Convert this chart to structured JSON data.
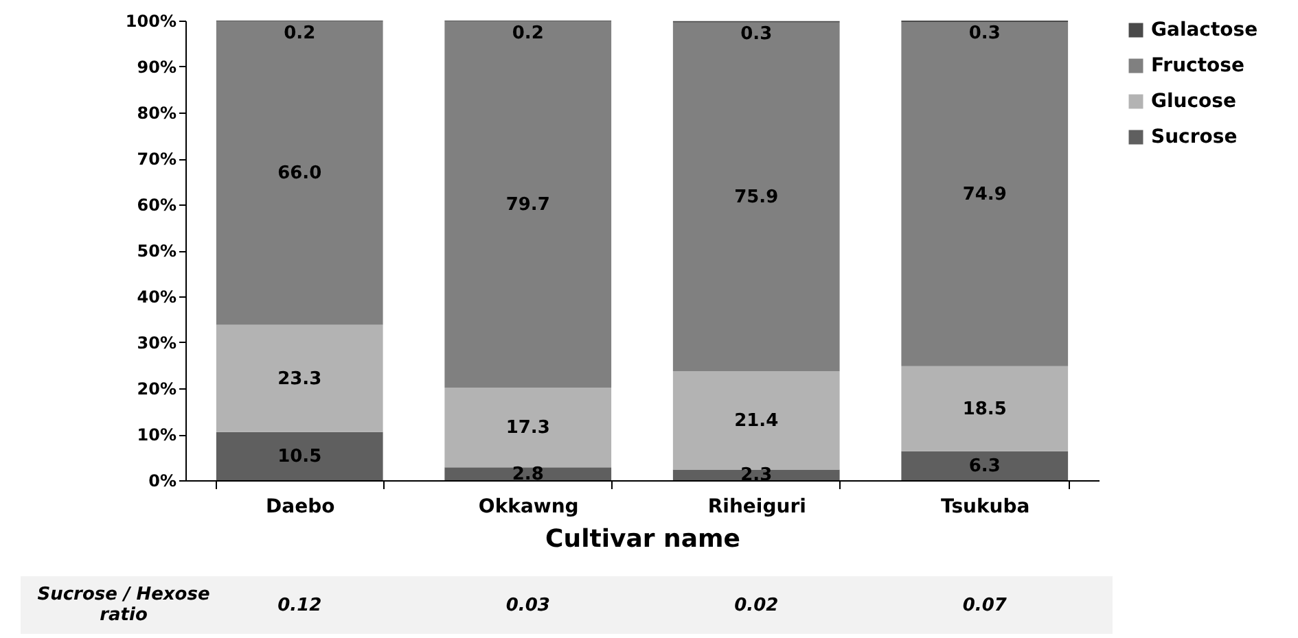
{
  "chart_data": {
    "type": "bar",
    "stacked": true,
    "xlabel": "Cultivar name",
    "categories": [
      "Daebo",
      "Okkawng",
      "Riheiguri",
      "Tsukuba"
    ],
    "series": [
      {
        "name": "Sucrose",
        "color": "#5f5f5f",
        "values": [
          10.5,
          2.8,
          2.3,
          6.3
        ]
      },
      {
        "name": "Glucose",
        "color": "#b3b3b3",
        "values": [
          23.3,
          17.3,
          21.4,
          18.5
        ]
      },
      {
        "name": "Fructose",
        "color": "#808080",
        "values": [
          66.0,
          79.7,
          75.9,
          74.9
        ]
      },
      {
        "name": "Galactose",
        "color": "#4a4a4a",
        "values": [
          0.2,
          0.2,
          0.3,
          0.3
        ]
      }
    ],
    "ylim": [
      0,
      100
    ],
    "yticks": [
      {
        "value": 0,
        "label": "0%"
      },
      {
        "value": 10,
        "label": "10%"
      },
      {
        "value": 20,
        "label": "20%"
      },
      {
        "value": 30,
        "label": "30%"
      },
      {
        "value": 40,
        "label": "40%"
      },
      {
        "value": 50,
        "label": "50%"
      },
      {
        "value": 60,
        "label": "60%"
      },
      {
        "value": 70,
        "label": "70%"
      },
      {
        "value": 80,
        "label": "80%"
      },
      {
        "value": 90,
        "label": "90%"
      },
      {
        "value": 100,
        "label": "100%"
      }
    ],
    "value_labels": [
      [
        "10.5",
        "2.8",
        "2.3",
        "6.3"
      ],
      [
        "23.3",
        "17.3",
        "21.4",
        "18.5"
      ],
      [
        "66.0",
        "79.7",
        "75.9",
        "74.9"
      ],
      [
        "0.2",
        "0.2",
        "0.3",
        "0.3"
      ]
    ],
    "legend": "right",
    "grid": false,
    "annotations": [
      "Sucrose / Hexose ratio",
      "0.12",
      "0.03",
      "0.02",
      "0.07"
    ]
  }
}
